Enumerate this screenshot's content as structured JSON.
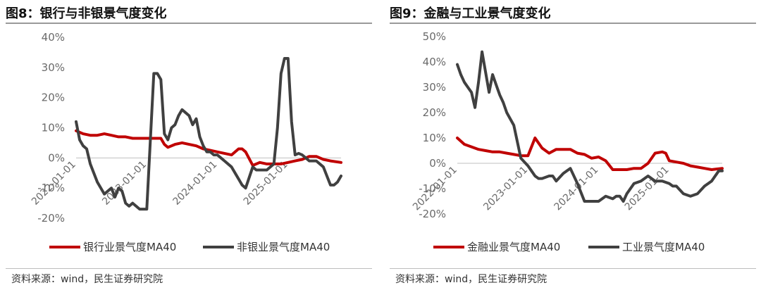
{
  "source_note": "资料来源：wind，民生证券研究院",
  "chart_data": [
    {
      "type": "line",
      "title": "图8：银行与非银景气度变化",
      "ylim": [
        -20,
        40
      ],
      "yticks": [
        "40%",
        "30%",
        "20%",
        "10%",
        "0%",
        "-10%",
        "-20%"
      ],
      "ytick_values": [
        40,
        30,
        20,
        10,
        0,
        -10,
        -20
      ],
      "xlim": [
        2022.0,
        2025.75
      ],
      "xtick_labels": [
        "2022-01-01",
        "2023-01-01",
        "2024-01-01",
        "2025-01-01"
      ],
      "xtick_values": [
        2022.0,
        2023.0,
        2024.0,
        2025.0
      ],
      "grid": false,
      "legend_position": "bottom",
      "series": [
        {
          "name": "银行业景气度MA40",
          "color": "#c00000",
          "x": [
            2022.0,
            2022.1,
            2022.2,
            2022.3,
            2022.4,
            2022.5,
            2022.6,
            2022.7,
            2022.8,
            2022.9,
            2023.0,
            2023.1,
            2023.2,
            2023.25,
            2023.3,
            2023.4,
            2023.5,
            2023.6,
            2023.7,
            2023.8,
            2023.9,
            2024.0,
            2024.1,
            2024.2,
            2024.3,
            2024.35,
            2024.4,
            2024.5,
            2024.6,
            2024.7,
            2024.8,
            2024.9,
            2025.0,
            2025.1,
            2025.2,
            2025.3,
            2025.4,
            2025.5,
            2025.6,
            2025.75
          ],
          "values": [
            9,
            8,
            7.5,
            7.5,
            8,
            7.5,
            7,
            7,
            6.5,
            6.5,
            6.5,
            6.5,
            6.5,
            4.5,
            3.5,
            4.5,
            5,
            4.5,
            4,
            3,
            2.5,
            2,
            1.5,
            1,
            3,
            3,
            2,
            -2.5,
            -1.5,
            -2,
            -2,
            -2,
            -1.5,
            -1,
            -0.5,
            0.5,
            0.5,
            -0.5,
            -1,
            -1.5
          ]
        },
        {
          "name": "非银业景气度MA40",
          "color": "#404040",
          "x": [
            2022.0,
            2022.05,
            2022.1,
            2022.15,
            2022.2,
            2022.3,
            2022.4,
            2022.45,
            2022.5,
            2022.55,
            2022.6,
            2022.65,
            2022.7,
            2022.75,
            2022.8,
            2022.9,
            2022.95,
            2023.0,
            2023.1,
            2023.15,
            2023.2,
            2023.25,
            2023.3,
            2023.35,
            2023.4,
            2023.45,
            2023.5,
            2023.6,
            2023.65,
            2023.7,
            2023.75,
            2023.8,
            2023.85,
            2023.9,
            2023.95,
            2024.0,
            2024.05,
            2024.1,
            2024.2,
            2024.3,
            2024.35,
            2024.4,
            2024.5,
            2024.55,
            2024.6,
            2024.65,
            2024.7,
            2024.8,
            2024.85,
            2024.9,
            2024.95,
            2025.0,
            2025.05,
            2025.1,
            2025.15,
            2025.2,
            2025.25,
            2025.3,
            2025.4,
            2025.5,
            2025.6,
            2025.65,
            2025.7,
            2025.75
          ],
          "values": [
            12,
            6,
            4,
            3,
            -2,
            -8,
            -12,
            -11,
            -10,
            -13,
            -10,
            -11,
            -15,
            -16,
            -15,
            -17,
            -17,
            -17,
            28,
            28,
            26,
            8,
            6,
            10,
            11,
            14,
            16,
            14,
            11,
            13,
            7,
            4,
            2,
            2,
            1,
            1,
            0,
            -1,
            -3,
            -7,
            -9,
            -10,
            -3,
            -4,
            -4,
            -4,
            -4,
            -2,
            10,
            28,
            33,
            33,
            12,
            1,
            1.5,
            1,
            0,
            -1,
            -1,
            -3,
            -9,
            -9,
            -8,
            -6
          ]
        }
      ]
    },
    {
      "type": "line",
      "title": "图9：金融与工业景气度变化",
      "ylim": [
        -20,
        50
      ],
      "yticks": [
        "50%",
        "40%",
        "30%",
        "20%",
        "10%",
        "0%",
        "-10%",
        "-20%"
      ],
      "ytick_values": [
        50,
        40,
        30,
        20,
        10,
        0,
        -10,
        -20
      ],
      "xlim": [
        2022.0,
        2025.75
      ],
      "xtick_labels": [
        "2022-01-01",
        "2023-01-01",
        "2024-01-01",
        "2025-01-01"
      ],
      "xtick_values": [
        2022.0,
        2023.0,
        2024.0,
        2025.0
      ],
      "grid": false,
      "legend_position": "bottom",
      "series": [
        {
          "name": "金融业景气度MA40",
          "color": "#c00000",
          "x": [
            2022.0,
            2022.1,
            2022.2,
            2022.3,
            2022.4,
            2022.5,
            2022.6,
            2022.7,
            2022.8,
            2022.9,
            2023.0,
            2023.05,
            2023.1,
            2023.2,
            2023.3,
            2023.4,
            2023.5,
            2023.6,
            2023.7,
            2023.8,
            2023.9,
            2024.0,
            2024.1,
            2024.2,
            2024.3,
            2024.4,
            2024.5,
            2024.6,
            2024.7,
            2024.8,
            2024.9,
            2024.95,
            2025.0,
            2025.1,
            2025.2,
            2025.3,
            2025.4,
            2025.5,
            2025.6,
            2025.75
          ],
          "values": [
            10,
            7.5,
            6.5,
            5.5,
            5,
            4.5,
            4.5,
            4,
            3.5,
            3,
            3,
            6.5,
            10,
            6,
            4,
            5.5,
            5.5,
            5.5,
            4,
            3.5,
            2,
            2.5,
            1,
            -2.5,
            -2.5,
            -2.5,
            -2,
            -2,
            0,
            4,
            4.5,
            4,
            1,
            0.5,
            0,
            -1,
            -1.5,
            -2,
            -2.5,
            -2
          ]
        },
        {
          "name": "工业景气度MA40",
          "color": "#404040",
          "x": [
            2022.0,
            2022.05,
            2022.1,
            2022.15,
            2022.2,
            2022.25,
            2022.3,
            2022.35,
            2022.4,
            2022.45,
            2022.5,
            2022.55,
            2022.6,
            2022.65,
            2022.7,
            2022.8,
            2022.9,
            2023.0,
            2023.05,
            2023.1,
            2023.15,
            2023.2,
            2023.3,
            2023.35,
            2023.4,
            2023.5,
            2023.55,
            2023.6,
            2023.7,
            2023.8,
            2023.9,
            2023.95,
            2024.0,
            2024.1,
            2024.2,
            2024.25,
            2024.3,
            2024.35,
            2024.4,
            2024.5,
            2024.6,
            2024.7,
            2024.8,
            2024.9,
            2025.0,
            2025.05,
            2025.1,
            2025.2,
            2025.3,
            2025.4,
            2025.5,
            2025.6,
            2025.7,
            2025.75
          ],
          "values": [
            39,
            35,
            32,
            30,
            28,
            22,
            32,
            44,
            36,
            28,
            35,
            31,
            27,
            24,
            20,
            15,
            2,
            -1,
            -3,
            -5,
            -6,
            -6,
            -5,
            -5,
            -7,
            -4,
            -3,
            -2,
            -8,
            -15,
            -15,
            -15,
            -15,
            -13,
            -14,
            -13,
            -13,
            -15,
            -12,
            -8,
            -7,
            -5,
            -7,
            -7,
            -8,
            -9,
            -9,
            -12,
            -13,
            -12,
            -9,
            -7,
            -3,
            -3
          ]
        }
      ]
    }
  ]
}
